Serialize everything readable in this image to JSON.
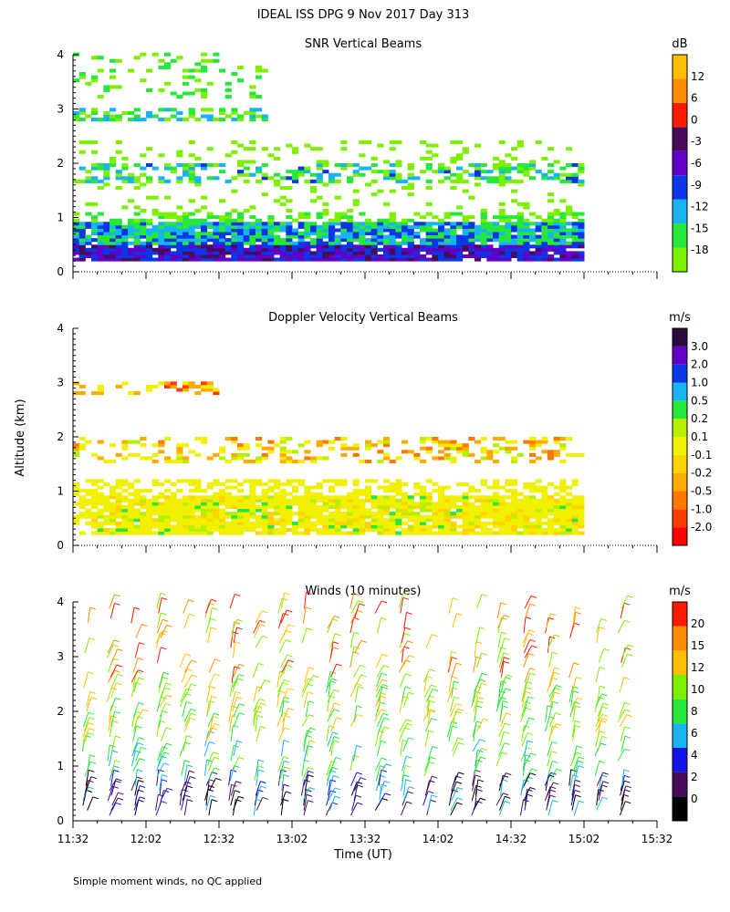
{
  "figure": {
    "title": "IDEAL ISS DPG   9 Nov 2017 Day 313",
    "footnote": "Simple moment winds, no QC applied"
  },
  "chart_data": [
    {
      "type": "heatmap",
      "title": "SNR Vertical Beams",
      "ylabel": "",
      "xlabel": "",
      "ylim": [
        0,
        4
      ],
      "y_ticks": [
        "0",
        "1",
        "2",
        "3",
        "4"
      ],
      "xlim": [
        "11:32",
        "15:32"
      ],
      "colorbar": {
        "unit": "dB",
        "labels": [
          "-18",
          "-15",
          "-12",
          "-9",
          "-6",
          "-3",
          "0",
          "6",
          "12"
        ],
        "colors": [
          "#7df000",
          "#27e83a",
          "#16b4f0",
          "#0a37e6",
          "#6200c8",
          "#4a0a5c",
          "#ff1a00",
          "#ff8c00",
          "#ffbe00"
        ]
      },
      "layers": [
        {
          "y_km": [
            0.2,
            0.9
          ],
          "strength": "strong"
        },
        {
          "y_km": [
            1.6,
            2.0
          ],
          "strength": "moderate"
        },
        {
          "y_km": [
            2.8,
            3.0
          ],
          "strength": "moderate"
        },
        {
          "y_km": [
            3.3,
            4.0
          ],
          "strength": "weak"
        }
      ]
    },
    {
      "type": "heatmap",
      "title": "Doppler Velocity Vertical Beams",
      "ylabel": "Altitude (km)",
      "xlabel": "",
      "ylim": [
        0,
        4
      ],
      "y_ticks": [
        "0",
        "1",
        "2",
        "3",
        "4"
      ],
      "xlim": [
        "11:32",
        "15:32"
      ],
      "colorbar": {
        "unit": "m/s",
        "labels": [
          "-2.0",
          "-1.0",
          "-0.5",
          "-0.2",
          "-0.1",
          "0.1",
          "0.2",
          "0.5",
          "1.0",
          "2.0",
          "3.0"
        ],
        "colors": [
          "#ff0000",
          "#ff3c00",
          "#ff7800",
          "#ffaa00",
          "#ffd200",
          "#f0f000",
          "#b4f000",
          "#27e83a",
          "#16b4f0",
          "#0a37e6",
          "#6200c8",
          "#2a0a3c"
        ]
      }
    },
    {
      "type": "scatter",
      "title": "Winds (10 minutes)",
      "ylabel": "",
      "xlabel": "Time (UT)",
      "ylim": [
        0,
        4
      ],
      "y_ticks": [
        "0",
        "1",
        "2",
        "3",
        "4"
      ],
      "x_ticks": [
        "11:32",
        "12:02",
        "12:32",
        "13:02",
        "13:32",
        "14:02",
        "14:32",
        "15:02",
        "15:32"
      ],
      "xlim_minutes": [
        0,
        240
      ],
      "colorbar": {
        "unit": "m/s",
        "labels": [
          "0",
          "2",
          "4",
          "6",
          "8",
          "10",
          "12",
          "15",
          "20"
        ],
        "colors": [
          "#000000",
          "#4a0a5c",
          "#1414e6",
          "#16b4f0",
          "#27e83a",
          "#7df000",
          "#ffbe00",
          "#ff8c00",
          "#ff1a00"
        ]
      },
      "profile_times_minutes": [
        5,
        15,
        25,
        35,
        45,
        55,
        65,
        75,
        85,
        95,
        105,
        115,
        125,
        135,
        145,
        155,
        165,
        175,
        185,
        195,
        205,
        215,
        225
      ]
    }
  ]
}
